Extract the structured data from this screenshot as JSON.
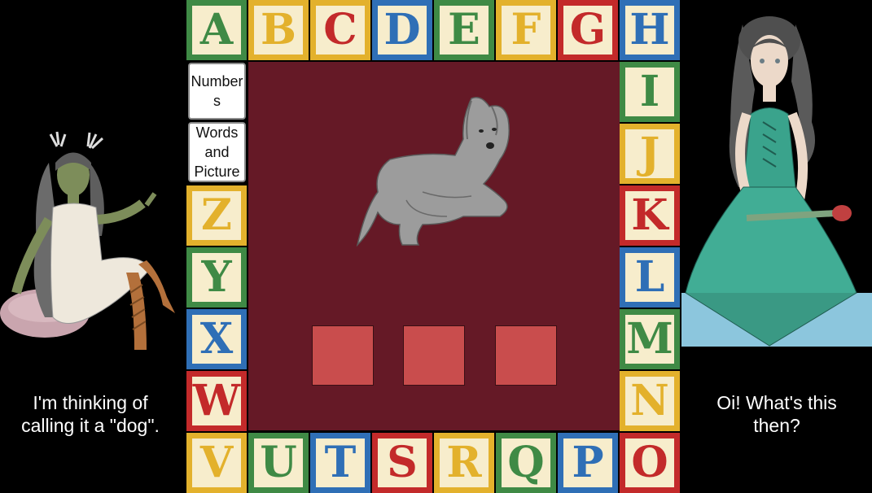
{
  "board": {
    "top_row": [
      {
        "letter": "A",
        "face": "#2f6fb6",
        "border": "#3f8a45",
        "ink": "#3f8a45"
      },
      {
        "letter": "B",
        "face": "#f7edcc",
        "border": "#e3b12c",
        "ink": "#e3b12c"
      },
      {
        "letter": "C",
        "face": "#f7edcc",
        "border": "#e3b12c",
        "ink": "#c32a2a"
      },
      {
        "letter": "D",
        "face": "#f7edcc",
        "border": "#2f6fb6",
        "ink": "#2f6fb6"
      },
      {
        "letter": "E",
        "face": "#f7edcc",
        "border": "#3f8a45",
        "ink": "#3f8a45"
      },
      {
        "letter": "F",
        "face": "#f7edcc",
        "border": "#e3b12c",
        "ink": "#e3b12c"
      },
      {
        "letter": "G",
        "face": "#f7edcc",
        "border": "#c32a2a",
        "ink": "#c32a2a"
      },
      {
        "letter": "H",
        "face": "#f7edcc",
        "border": "#2f6fb6",
        "ink": "#2f6fb6"
      }
    ],
    "right_col": [
      {
        "letter": "I",
        "face": "#f7edcc",
        "border": "#3f8a45",
        "ink": "#3f8a45"
      },
      {
        "letter": "J",
        "face": "#f7edcc",
        "border": "#e3b12c",
        "ink": "#e3b12c"
      },
      {
        "letter": "K",
        "face": "#f7edcc",
        "border": "#c32a2a",
        "ink": "#c32a2a"
      },
      {
        "letter": "L",
        "face": "#f7edcc",
        "border": "#2f6fb6",
        "ink": "#2f6fb6"
      },
      {
        "letter": "M",
        "face": "#f7edcc",
        "border": "#3f8a45",
        "ink": "#3f8a45"
      },
      {
        "letter": "N",
        "face": "#f7edcc",
        "border": "#e3b12c",
        "ink": "#e3b12c"
      }
    ],
    "bottom_row": [
      {
        "letter": "V",
        "face": "#f7edcc",
        "border": "#e3b12c",
        "ink": "#e3b12c"
      },
      {
        "letter": "U",
        "face": "#f7edcc",
        "border": "#3f8a45",
        "ink": "#3f8a45"
      },
      {
        "letter": "T",
        "face": "#f7edcc",
        "border": "#2f6fb6",
        "ink": "#2f6fb6"
      },
      {
        "letter": "S",
        "face": "#f7edcc",
        "border": "#c32a2a",
        "ink": "#c32a2a"
      },
      {
        "letter": "R",
        "face": "#f7edcc",
        "border": "#e3b12c",
        "ink": "#e3b12c"
      },
      {
        "letter": "Q",
        "face": "#f7edcc",
        "border": "#3f8a45",
        "ink": "#3f8a45"
      },
      {
        "letter": "P",
        "face": "#f7edcc",
        "border": "#2f6fb6",
        "ink": "#2f6fb6"
      },
      {
        "letter": "O",
        "face": "#f7edcc",
        "border": "#c32a2a",
        "ink": "#c32a2a"
      }
    ],
    "left_col": [
      {
        "letter": "Z",
        "face": "#f7edcc",
        "border": "#e3b12c",
        "ink": "#e3b12c"
      },
      {
        "letter": "Y",
        "face": "#f7edcc",
        "border": "#3f8a45",
        "ink": "#3f8a45"
      },
      {
        "letter": "X",
        "face": "#f7edcc",
        "border": "#2f6fb6",
        "ink": "#2f6fb6"
      },
      {
        "letter": "W",
        "face": "#f7edcc",
        "border": "#c32a2a",
        "ink": "#c32a2a"
      }
    ],
    "center_color": "#651926",
    "slot_color": "#c94d4d"
  },
  "menu": {
    "numbers_label": "Numbers",
    "words_label": "Words and Picture"
  },
  "picture": {
    "subject": "dog",
    "icon": "dog-sketch"
  },
  "answer_slots": 3,
  "left_character": {
    "caption_line1": "I'm thinking of",
    "caption_line2": "calling it a \"dog\"."
  },
  "right_character": {
    "caption_line1": "Oi! What's this",
    "caption_line2": "then?"
  }
}
